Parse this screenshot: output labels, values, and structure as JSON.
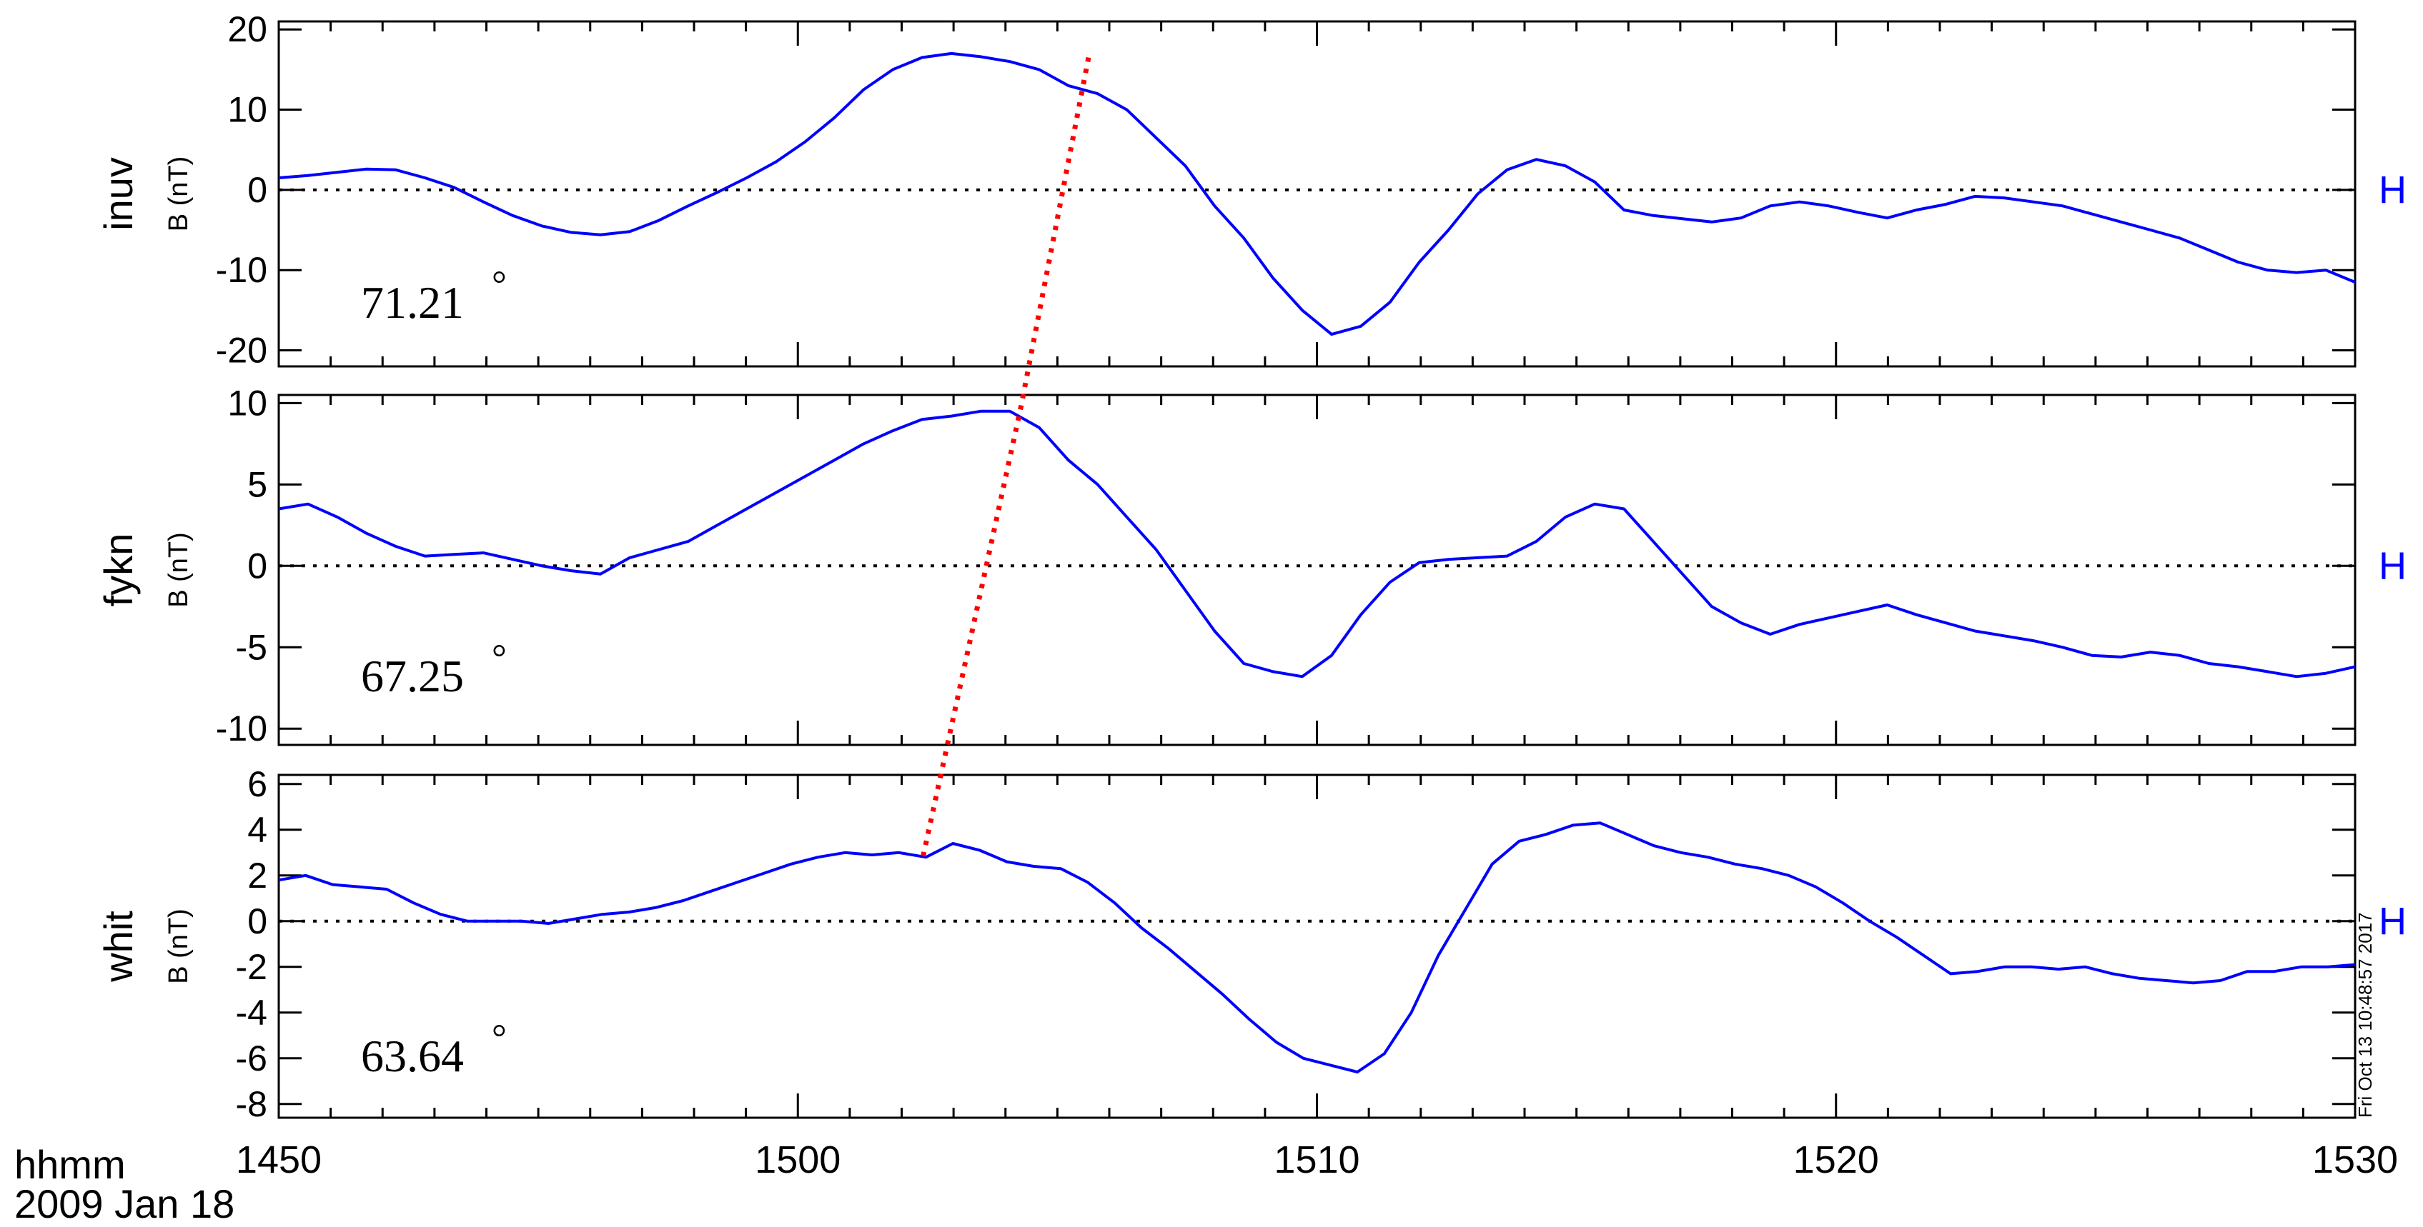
{
  "footer": {
    "xunit": "hhmm",
    "date": "2009 Jan 18",
    "timestamp": "Fri Oct 13 10:48:57 2017"
  },
  "chart_data": {
    "type": "line",
    "x_ticks": [
      1450,
      1500,
      1510,
      1520,
      1530
    ],
    "x_tick_labels": [
      "1450",
      "1500",
      "1510",
      "1520",
      "1530"
    ],
    "xlim_minutes": [
      0,
      40
    ],
    "series_color": "#0000ff",
    "marker_color": "#ff0000",
    "panels": [
      {
        "station": "inuv",
        "ylabel": "B (nT)",
        "component": "H",
        "latitude": "71.21",
        "degree": "°",
        "ylim": [
          -22,
          21
        ],
        "yticks": [
          -20,
          -10,
          0,
          10,
          20
        ],
        "ytick_labels": [
          "-20",
          "-10",
          "0",
          "10",
          "20"
        ],
        "marker_time_min": 15.6,
        "marker_value": 16.5,
        "points": [
          [
            0,
            1.5
          ],
          [
            1,
            1.8
          ],
          [
            2,
            2.2
          ],
          [
            3,
            2.6
          ],
          [
            4,
            2.5
          ],
          [
            5,
            1.5
          ],
          [
            6,
            0.3
          ],
          [
            7,
            -1.5
          ],
          [
            8,
            -3.2
          ],
          [
            9,
            -4.5
          ],
          [
            10,
            -5.3
          ],
          [
            11,
            -5.6
          ],
          [
            12,
            -5.2
          ],
          [
            13,
            -3.8
          ],
          [
            14,
            -2.0
          ],
          [
            15,
            -0.3
          ],
          [
            16,
            1.5
          ],
          [
            17,
            3.5
          ],
          [
            18,
            6.0
          ],
          [
            19,
            9.0
          ],
          [
            20,
            12.5
          ],
          [
            21,
            15.0
          ],
          [
            22,
            16.5
          ],
          [
            23,
            17.0
          ],
          [
            24,
            16.6
          ],
          [
            25,
            16.0
          ],
          [
            26,
            15.0
          ],
          [
            27,
            13.0
          ],
          [
            28,
            12.0
          ],
          [
            29,
            10.0
          ],
          [
            30,
            6.5
          ],
          [
            31,
            3.0
          ],
          [
            32,
            -2.0
          ],
          [
            33,
            -6.0
          ],
          [
            34,
            -11.0
          ],
          [
            35,
            -15.0
          ],
          [
            36,
            -18.0
          ],
          [
            37,
            -17.0
          ],
          [
            38,
            -14.0
          ],
          [
            39,
            -9.0
          ],
          [
            40,
            -5.0
          ],
          [
            41,
            -0.5
          ],
          [
            42,
            2.5
          ],
          [
            43,
            3.8
          ],
          [
            44,
            3.0
          ],
          [
            45,
            1.0
          ],
          [
            46,
            -2.5
          ],
          [
            47,
            -3.2
          ],
          [
            48,
            -3.6
          ],
          [
            49,
            -4.0
          ],
          [
            50,
            -3.5
          ],
          [
            51,
            -2.0
          ],
          [
            52,
            -1.5
          ],
          [
            53,
            -2.0
          ],
          [
            54,
            -2.8
          ],
          [
            55,
            -3.5
          ],
          [
            56,
            -2.5
          ],
          [
            57,
            -1.8
          ],
          [
            58,
            -0.8
          ],
          [
            59,
            -1.0
          ],
          [
            60,
            -1.5
          ],
          [
            61,
            -2.0
          ],
          [
            62,
            -3.0
          ],
          [
            63,
            -4.0
          ],
          [
            64,
            -5.0
          ],
          [
            65,
            -6.0
          ],
          [
            66,
            -7.5
          ],
          [
            67,
            -9.0
          ],
          [
            68,
            -10.0
          ],
          [
            69,
            -10.3
          ],
          [
            70,
            -10.0
          ],
          [
            71,
            -11.5
          ]
        ]
      },
      {
        "station": "fykn",
        "ylabel": "B (nT)",
        "component": "H",
        "latitude": "67.25",
        "degree": "°",
        "ylim": [
          -11,
          10.5
        ],
        "yticks": [
          -10,
          -5,
          0,
          5,
          10
        ],
        "ytick_labels": [
          "-10",
          "-5",
          "0",
          "5",
          "10"
        ],
        "marker_time_min": 14.3,
        "marker_value": 9.8,
        "points": [
          [
            0,
            3.5
          ],
          [
            1,
            3.8
          ],
          [
            2,
            3.0
          ],
          [
            3,
            2.0
          ],
          [
            4,
            1.2
          ],
          [
            5,
            0.6
          ],
          [
            6,
            0.7
          ],
          [
            7,
            0.8
          ],
          [
            8,
            0.4
          ],
          [
            9,
            0.0
          ],
          [
            10,
            -0.3
          ],
          [
            11,
            -0.5
          ],
          [
            12,
            0.5
          ],
          [
            13,
            1.0
          ],
          [
            14,
            1.5
          ],
          [
            15,
            2.5
          ],
          [
            16,
            3.5
          ],
          [
            17,
            4.5
          ],
          [
            18,
            5.5
          ],
          [
            19,
            6.5
          ],
          [
            20,
            7.5
          ],
          [
            21,
            8.3
          ],
          [
            22,
            9.0
          ],
          [
            23,
            9.2
          ],
          [
            24,
            9.5
          ],
          [
            25,
            9.5
          ],
          [
            26,
            8.5
          ],
          [
            27,
            6.5
          ],
          [
            28,
            5.0
          ],
          [
            29,
            3.0
          ],
          [
            30,
            1.0
          ],
          [
            31,
            -1.5
          ],
          [
            32,
            -4.0
          ],
          [
            33,
            -6.0
          ],
          [
            34,
            -6.5
          ],
          [
            35,
            -6.8
          ],
          [
            36,
            -5.5
          ],
          [
            37,
            -3.0
          ],
          [
            38,
            -1.0
          ],
          [
            39,
            0.2
          ],
          [
            40,
            0.4
          ],
          [
            41,
            0.5
          ],
          [
            42,
            0.6
          ],
          [
            43,
            1.5
          ],
          [
            44,
            3.0
          ],
          [
            45,
            3.8
          ],
          [
            46,
            3.5
          ],
          [
            47,
            1.5
          ],
          [
            48,
            -0.5
          ],
          [
            49,
            -2.5
          ],
          [
            50,
            -3.5
          ],
          [
            51,
            -4.2
          ],
          [
            52,
            -3.6
          ],
          [
            53,
            -3.2
          ],
          [
            54,
            -2.8
          ],
          [
            55,
            -2.4
          ],
          [
            56,
            -3.0
          ],
          [
            57,
            -3.5
          ],
          [
            58,
            -4.0
          ],
          [
            59,
            -4.3
          ],
          [
            60,
            -4.6
          ],
          [
            61,
            -5.0
          ],
          [
            62,
            -5.5
          ],
          [
            63,
            -5.6
          ],
          [
            64,
            -5.3
          ],
          [
            65,
            -5.5
          ],
          [
            66,
            -6.0
          ],
          [
            67,
            -6.2
          ],
          [
            68,
            -6.5
          ],
          [
            69,
            -6.8
          ],
          [
            70,
            -6.6
          ],
          [
            71,
            -6.2
          ]
        ]
      },
      {
        "station": "whit",
        "ylabel": "B (nT)",
        "component": "H",
        "latitude": "63.64",
        "degree": "°",
        "ylim": [
          -8.6,
          6.4
        ],
        "yticks": [
          -8,
          -6,
          -4,
          -2,
          0,
          2,
          4,
          6
        ],
        "ytick_labels": [
          "-8",
          "-6",
          "-4",
          "-2",
          "0",
          "2",
          "4",
          "6"
        ],
        "marker_time_min": 12.4,
        "marker_value": 2.7,
        "points": [
          [
            0,
            1.8
          ],
          [
            1,
            2.0
          ],
          [
            2,
            1.6
          ],
          [
            3,
            1.5
          ],
          [
            4,
            1.4
          ],
          [
            5,
            0.8
          ],
          [
            6,
            0.3
          ],
          [
            7,
            0.0
          ],
          [
            8,
            0.0
          ],
          [
            9,
            0.0
          ],
          [
            10,
            -0.1
          ],
          [
            11,
            0.1
          ],
          [
            12,
            0.3
          ],
          [
            13,
            0.4
          ],
          [
            14,
            0.6
          ],
          [
            15,
            0.9
          ],
          [
            16,
            1.3
          ],
          [
            17,
            1.7
          ],
          [
            18,
            2.1
          ],
          [
            19,
            2.5
          ],
          [
            20,
            2.8
          ],
          [
            21,
            3.0
          ],
          [
            22,
            2.9
          ],
          [
            23,
            3.0
          ],
          [
            24,
            2.8
          ],
          [
            25,
            3.4
          ],
          [
            26,
            3.1
          ],
          [
            27,
            2.6
          ],
          [
            28,
            2.4
          ],
          [
            29,
            2.3
          ],
          [
            30,
            1.7
          ],
          [
            31,
            0.8
          ],
          [
            32,
            -0.3
          ],
          [
            33,
            -1.2
          ],
          [
            34,
            -2.2
          ],
          [
            35,
            -3.2
          ],
          [
            36,
            -4.3
          ],
          [
            37,
            -5.3
          ],
          [
            38,
            -6.0
          ],
          [
            39,
            -6.3
          ],
          [
            40,
            -6.6
          ],
          [
            41,
            -5.8
          ],
          [
            42,
            -4.0
          ],
          [
            43,
            -1.5
          ],
          [
            44,
            0.5
          ],
          [
            45,
            2.5
          ],
          [
            46,
            3.5
          ],
          [
            47,
            3.8
          ],
          [
            48,
            4.2
          ],
          [
            49,
            4.3
          ],
          [
            50,
            3.8
          ],
          [
            51,
            3.3
          ],
          [
            52,
            3.0
          ],
          [
            53,
            2.8
          ],
          [
            54,
            2.5
          ],
          [
            55,
            2.3
          ],
          [
            56,
            2.0
          ],
          [
            57,
            1.5
          ],
          [
            58,
            0.8
          ],
          [
            59,
            0.0
          ],
          [
            60,
            -0.7
          ],
          [
            61,
            -1.5
          ],
          [
            62,
            -2.3
          ],
          [
            63,
            -2.2
          ],
          [
            64,
            -2.0
          ],
          [
            65,
            -2.0
          ],
          [
            66,
            -2.1
          ],
          [
            67,
            -2.0
          ],
          [
            68,
            -2.3
          ],
          [
            69,
            -2.5
          ],
          [
            70,
            -2.6
          ],
          [
            71,
            -2.7
          ],
          [
            72,
            -2.6
          ],
          [
            73,
            -2.2
          ],
          [
            74,
            -2.2
          ],
          [
            75,
            -2.0
          ],
          [
            76,
            -2.0
          ],
          [
            77,
            -1.9
          ]
        ]
      }
    ]
  }
}
